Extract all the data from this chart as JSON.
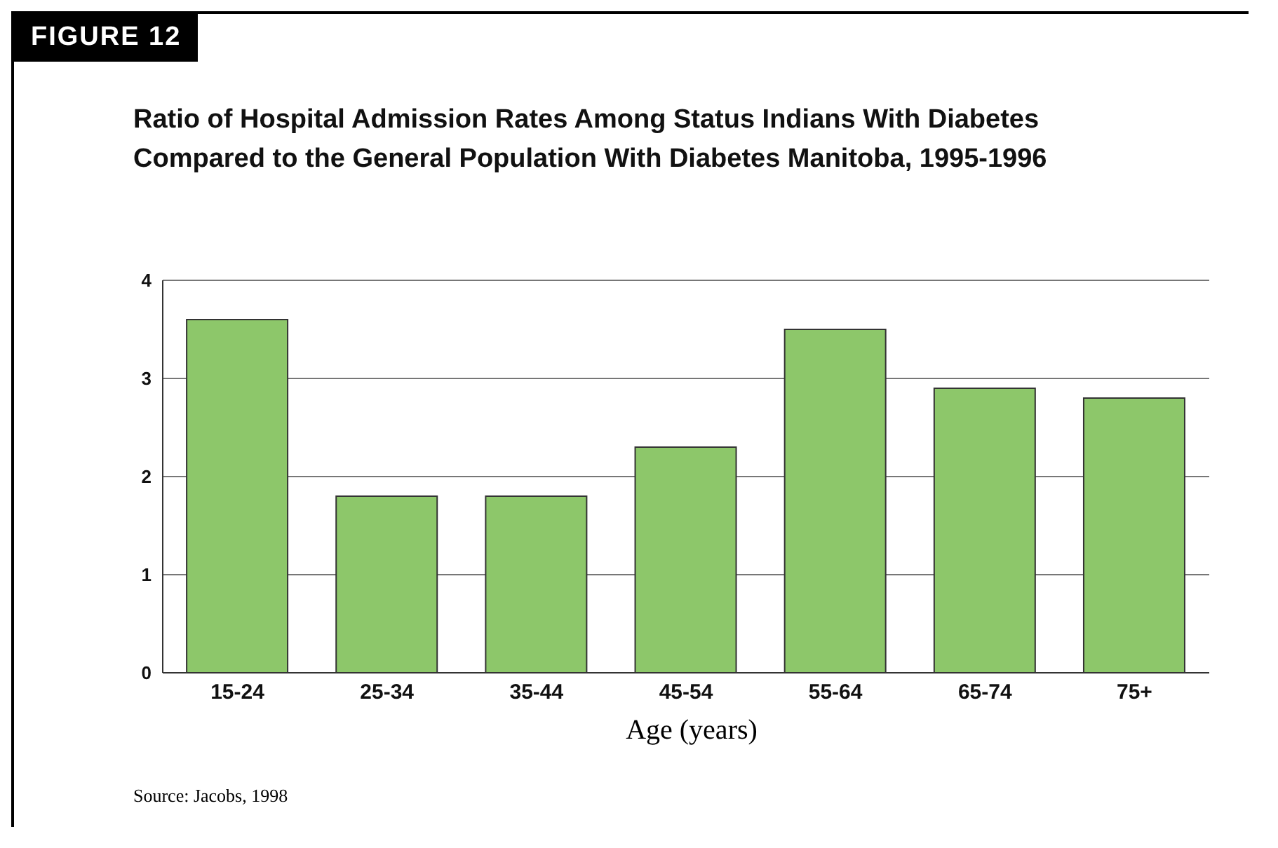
{
  "chart_data": {
    "type": "bar",
    "title": "Ratio of Hospital Admission Rates Among Status Indians With Diabetes Compared to the General Population With Diabetes Manitoba, 1995-1996",
    "xlabel": "Age (years)",
    "categories": [
      "15-24",
      "25-34",
      "35-44",
      "45-54",
      "55-64",
      "65-74",
      "75+"
    ],
    "values": [
      3.6,
      1.8,
      1.8,
      2.3,
      3.5,
      2.9,
      2.8
    ],
    "color": "#8dc76a",
    "ylim": [
      0,
      4
    ],
    "yticks": [
      0,
      1,
      2,
      3,
      4
    ],
    "grid": "y",
    "annotations": [
      "FIGURE 12",
      "Source: Jacobs, 1998"
    ]
  }
}
